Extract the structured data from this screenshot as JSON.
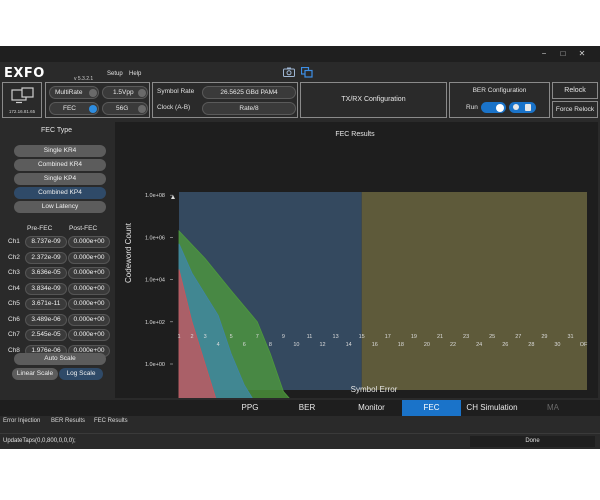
{
  "app": {
    "logo": "EXFO",
    "version": "v 5.3.2.1",
    "menu": [
      "Setup",
      "Help"
    ],
    "ip": "172.16.81.65"
  },
  "window_controls": {
    "minimize": "−",
    "maximize": "□",
    "close": "✕"
  },
  "toolbar": {
    "multirate_label": "MultiRate",
    "amplitude": "1.5Vpp",
    "fec_label": "FEC",
    "speed": "56G",
    "symbol_rate_label": "Symbol Rate",
    "symbol_rate_value": "26.5625 GBd PAM4",
    "clock_label": "Clock (A-B)",
    "clock_value": "Rate/8",
    "txrx_label": "TX/RX Configuration",
    "ber_config_label": "BER Configuration",
    "run_label": "Run",
    "relock_label": "Relock",
    "force_relock_label": "Force Relock"
  },
  "colors": {
    "accent": "#1a73c9",
    "fec_dot": "#2e8de0"
  },
  "left_panel": {
    "fec_type_title": "FEC Type",
    "fec_types": [
      "Single KR4",
      "Combined KR4",
      "Single KP4",
      "Combined KP4",
      "Low Latency"
    ],
    "selected_fec": "Combined KP4",
    "pre_fec_header": "Pre-FEC",
    "post_fec_header": "Post-FEC",
    "channels": [
      {
        "name": "Ch1",
        "pre": "8.737e-09",
        "post": "0.000e+00"
      },
      {
        "name": "Ch2",
        "pre": "2.372e-09",
        "post": "0.000e+00"
      },
      {
        "name": "Ch3",
        "pre": "3.636e-05",
        "post": "0.000e+00"
      },
      {
        "name": "Ch4",
        "pre": "3.834e-09",
        "post": "0.000e+00"
      },
      {
        "name": "Ch5",
        "pre": "3.671e-11",
        "post": "0.000e+00"
      },
      {
        "name": "Ch6",
        "pre": "3.489e-06",
        "post": "0.000e+00"
      },
      {
        "name": "Ch7",
        "pre": "2.545e-05",
        "post": "0.000e+00"
      },
      {
        "name": "Ch8",
        "pre": "1.976e-06",
        "post": "0.000e+00"
      }
    ],
    "auto_scale_label": "Auto Scale",
    "linear_scale_label": "Linear Scale",
    "log_scale_label": "Log Scale",
    "selected_scale": "Log Scale"
  },
  "chart_data": {
    "type": "area",
    "title": "FEC Results",
    "xlabel": "Symbol Error",
    "ylabel": "Codeword Count",
    "yscale": "log",
    "ylim": [
      0.01,
      100000000
    ],
    "y_ticks": [
      "1.0e+08",
      "1.0e+06",
      "1.0e+04",
      "1.0e+02",
      "1.0e+00"
    ],
    "x_ticks": [
      "1",
      "2",
      "3",
      "4",
      "5",
      "6",
      "7",
      "8",
      "9",
      "10",
      "11",
      "13",
      "15",
      "17",
      "19",
      "21",
      "23",
      "25",
      "27",
      "29",
      "31",
      "OF"
    ],
    "x_ticks_low_row": [
      "4",
      "6",
      "8",
      "10",
      "12",
      "14",
      "16",
      "18",
      "20",
      "22",
      "24",
      "26",
      "28",
      "30"
    ],
    "x_ticks_high_row": [
      "1",
      "2",
      "3",
      "5",
      "7",
      "9",
      "11",
      "13",
      "15",
      "17",
      "19",
      "21",
      "23",
      "25",
      "27",
      "29",
      "31"
    ],
    "x_ticks_offset_row": [
      "OF"
    ],
    "threshold_symbol_error": 15,
    "grid": false,
    "series": [
      {
        "color": "#4e9a3c",
        "x": [
          1,
          3,
          5,
          7,
          8,
          9,
          10
        ],
        "y": [
          2000000,
          100000,
          3000,
          100,
          3,
          0.05,
          0.01
        ]
      },
      {
        "color": "#3f86a8",
        "x": [
          1,
          2,
          4,
          5,
          6,
          7
        ],
        "y": [
          500000,
          20000,
          200,
          3,
          0.1,
          0.01
        ]
      },
      {
        "color": "#c8555c",
        "x": [
          1,
          2,
          3,
          4
        ],
        "y": [
          30000,
          100,
          1,
          0.01
        ]
      }
    ]
  },
  "tabs": [
    "PPG",
    "BER",
    "Monitor",
    "FEC",
    "CH Simulation",
    "MA"
  ],
  "active_tab": "FEC",
  "subtabs": [
    "Error Injection",
    "BER Results",
    "FEC Results"
  ],
  "status": {
    "command": "UpdateTaps(0,0,800,0,0,0);",
    "state": "Done"
  }
}
